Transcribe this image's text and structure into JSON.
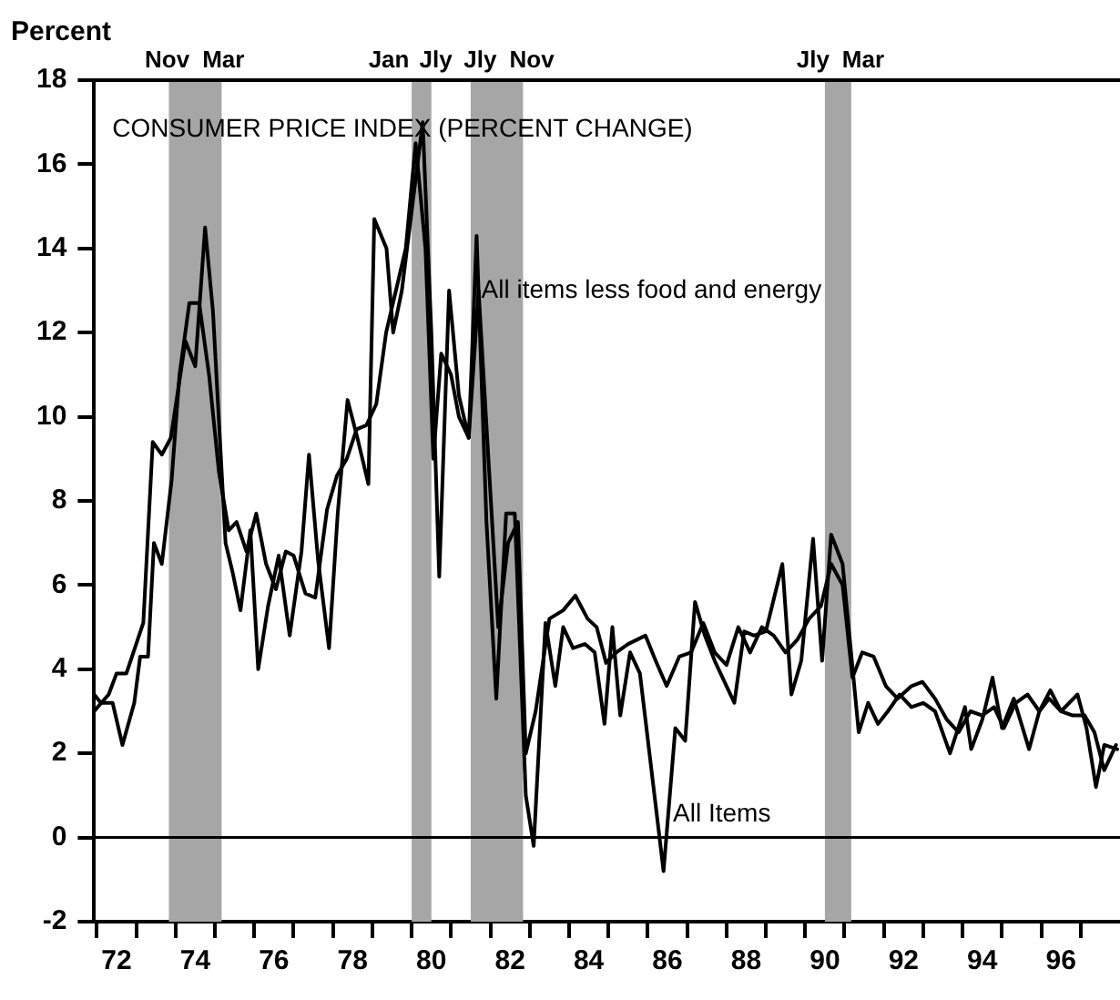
{
  "chart_data": {
    "type": "line",
    "title": "CONSUMER PRICE INDEX (PERCENT CHANGE)",
    "ylabel": "Percent",
    "xlim": [
      71.43,
      97.5
    ],
    "ylim": [
      -2,
      18
    ],
    "yticks": [
      -2,
      0,
      2,
      4,
      6,
      8,
      10,
      12,
      14,
      16,
      18
    ],
    "xticks": [
      {
        "value": 71.5,
        "label": null
      },
      72,
      {
        "value": 72.5,
        "label": null
      },
      {
        "value": 73.5,
        "label": null
      },
      74,
      {
        "value": 74.5,
        "label": null
      },
      {
        "value": 75.5,
        "label": null
      },
      76,
      {
        "value": 76.5,
        "label": null
      },
      {
        "value": 77.5,
        "label": null
      },
      78,
      {
        "value": 78.5,
        "label": null
      },
      {
        "value": 79.5,
        "label": null
      },
      80,
      {
        "value": 80.5,
        "label": null
      },
      {
        "value": 81.5,
        "label": null
      },
      82,
      {
        "value": 82.5,
        "label": null
      },
      {
        "value": 83.5,
        "label": null
      },
      84,
      {
        "value": 84.5,
        "label": null
      },
      {
        "value": 85.5,
        "label": null
      },
      86,
      {
        "value": 86.5,
        "label": null
      },
      {
        "value": 87.5,
        "label": null
      },
      88,
      {
        "value": 88.5,
        "label": null
      },
      {
        "value": 89.5,
        "label": null
      },
      90,
      {
        "value": 90.5,
        "label": null
      },
      {
        "value": 91.5,
        "label": null
      },
      92,
      {
        "value": 92.5,
        "label": null
      },
      {
        "value": 93.5,
        "label": null
      },
      94,
      {
        "value": 94.5,
        "label": null
      },
      {
        "value": 95.5,
        "label": null
      },
      96,
      {
        "value": 96.5,
        "label": null
      }
    ],
    "series": [
      {
        "color": "#000000",
        "x": [
          71.43,
          71.8,
          72.0,
          72.25,
          72.68,
          72.92,
          73.15,
          73.38,
          73.75,
          74.0,
          74.25,
          74.45,
          74.77,
          74.95,
          75.15,
          75.4,
          75.6,
          75.85,
          76.12,
          76.4,
          76.7,
          76.89,
          77.12,
          77.4,
          77.62,
          77.87,
          78.12,
          78.4,
          78.55,
          78.86,
          79.03,
          79.25,
          79.78,
          80.0,
          80.2,
          80.45,
          80.7,
          80.95,
          81.15,
          81.4,
          81.65,
          81.9,
          82.12,
          82.4,
          82.6,
          82.9,
          83.15,
          83.35,
          83.6,
          83.9,
          84.15,
          84.4,
          84.6,
          84.8,
          85.05,
          85.3,
          85.9,
          86.2,
          86.45,
          86.7,
          86.95,
          87.2,
          87.7,
          87.95,
          88.2,
          88.5,
          88.92,
          89.15,
          89.4,
          89.7,
          89.93,
          90.16,
          90.45,
          90.86,
          91.1,
          91.35,
          91.6,
          91.9,
          92.2,
          92.5,
          92.8,
          93.18,
          93.56,
          93.72,
          94.0,
          94.26,
          94.5,
          94.8,
          95.19,
          95.45,
          95.7,
          96.0,
          96.42,
          96.65,
          96.89,
          97.1,
          97.43
        ],
        "values": [
          3.0,
          3.4,
          3.9,
          3.9,
          5.1,
          9.4,
          9.1,
          9.5,
          11.8,
          11.2,
          14.5,
          12.5,
          7.0,
          6.3,
          5.4,
          7.3,
          4.0,
          5.5,
          6.7,
          4.8,
          6.8,
          9.1,
          6.6,
          4.5,
          7.7,
          10.4,
          9.5,
          8.4,
          14.7,
          14.0,
          12.0,
          13.0,
          17.0,
          12.0,
          6.2,
          13.0,
          10.5,
          9.5,
          14.3,
          7.5,
          3.3,
          7.7,
          7.7,
          1.0,
          -0.2,
          5.1,
          3.6,
          5.0,
          4.5,
          4.6,
          4.4,
          2.7,
          5.0,
          2.9,
          4.4,
          3.9,
          -0.8,
          2.6,
          2.3,
          5.6,
          4.8,
          4.2,
          3.2,
          4.9,
          4.8,
          4.9,
          6.5,
          3.4,
          4.2,
          7.1,
          4.2,
          7.2,
          6.5,
          2.5,
          3.2,
          2.7,
          3.0,
          3.4,
          3.1,
          3.2,
          3.0,
          2.0,
          3.1,
          2.1,
          2.8,
          3.8,
          2.6,
          3.3,
          2.1,
          3.0,
          3.3,
          3.0,
          3.4,
          2.6,
          1.2,
          2.2,
          2.1
        ]
      },
      {
        "color": "#000000",
        "x": [
          71.43,
          71.6,
          71.9,
          72.15,
          72.45,
          72.6,
          72.8,
          72.95,
          73.15,
          73.4,
          73.6,
          73.85,
          74.1,
          74.35,
          74.6,
          74.85,
          75.05,
          75.3,
          75.55,
          75.8,
          76.05,
          76.3,
          76.5,
          76.8,
          77.05,
          77.35,
          77.6,
          77.85,
          78.1,
          78.35,
          78.6,
          78.85,
          79.1,
          79.35,
          79.6,
          79.85,
          80.05,
          80.25,
          80.5,
          80.7,
          80.95,
          81.2,
          81.45,
          81.7,
          81.95,
          82.2,
          82.4,
          82.65,
          83.0,
          83.35,
          83.66,
          83.97,
          84.2,
          84.44,
          84.7,
          85.0,
          85.44,
          85.7,
          85.98,
          86.3,
          86.6,
          86.91,
          87.2,
          87.5,
          87.8,
          88.1,
          88.4,
          88.7,
          89.0,
          89.3,
          89.6,
          89.9,
          90.16,
          90.45,
          90.7,
          90.95,
          91.24,
          91.55,
          91.85,
          92.2,
          92.48,
          92.8,
          93.1,
          93.4,
          93.7,
          94.0,
          94.3,
          94.55,
          94.85,
          95.15,
          95.45,
          95.73,
          96.0,
          96.3,
          96.6,
          96.85,
          97.1,
          97.4
        ],
        "values": [
          3.4,
          3.2,
          3.2,
          2.2,
          3.2,
          4.3,
          4.3,
          7.0,
          6.5,
          8.5,
          11.0,
          12.7,
          12.7,
          11.0,
          8.7,
          7.3,
          7.5,
          6.8,
          7.7,
          6.5,
          5.9,
          6.8,
          6.7,
          5.8,
          5.7,
          7.8,
          8.6,
          9.0,
          9.7,
          9.8,
          10.3,
          12.0,
          13.0,
          14.0,
          16.5,
          14.0,
          9.0,
          11.5,
          11.0,
          10.0,
          9.5,
          13.0,
          9.0,
          5.0,
          7.0,
          7.5,
          2.0,
          3.0,
          5.2,
          5.4,
          5.75,
          5.2,
          5.0,
          4.15,
          4.4,
          4.6,
          4.8,
          4.2,
          3.6,
          4.3,
          4.4,
          5.1,
          4.4,
          4.1,
          5.0,
          4.4,
          5.0,
          4.8,
          4.4,
          4.7,
          5.2,
          5.5,
          6.5,
          6.0,
          3.8,
          4.4,
          4.3,
          3.6,
          3.3,
          3.6,
          3.7,
          3.3,
          2.8,
          2.5,
          3.0,
          2.9,
          3.1,
          2.6,
          3.2,
          3.4,
          3.0,
          3.5,
          3.0,
          2.9,
          2.9,
          2.5,
          1.6,
          2.2
        ]
      }
    ],
    "bands": [
      {
        "axis": "x",
        "from": 73.33,
        "to": 74.67,
        "label": "Nov Mar",
        "color": "#a6a6a6"
      },
      {
        "axis": "x",
        "from": 79.5,
        "to": 80.0,
        "label": "Jan Jly",
        "color": "#a6a6a6"
      },
      {
        "axis": "x",
        "from": 81.0,
        "to": 82.33,
        "label": "Jly Nov",
        "color": "#a6a6a6"
      },
      {
        "axis": "x",
        "from": 90.0,
        "to": 90.67,
        "label": "Jly Mar",
        "color": "#a6a6a6"
      }
    ],
    "ref_lines": [
      {
        "axis": "y",
        "value": 0,
        "color": "#000000"
      }
    ],
    "annotations": [
      {
        "text": "All items less food and energy",
        "x": 81.27,
        "y": 13.0
      },
      {
        "text": "All Items",
        "x": 86.14,
        "y": 0.55
      }
    ],
    "marker": "none",
    "line_style": "solid"
  }
}
